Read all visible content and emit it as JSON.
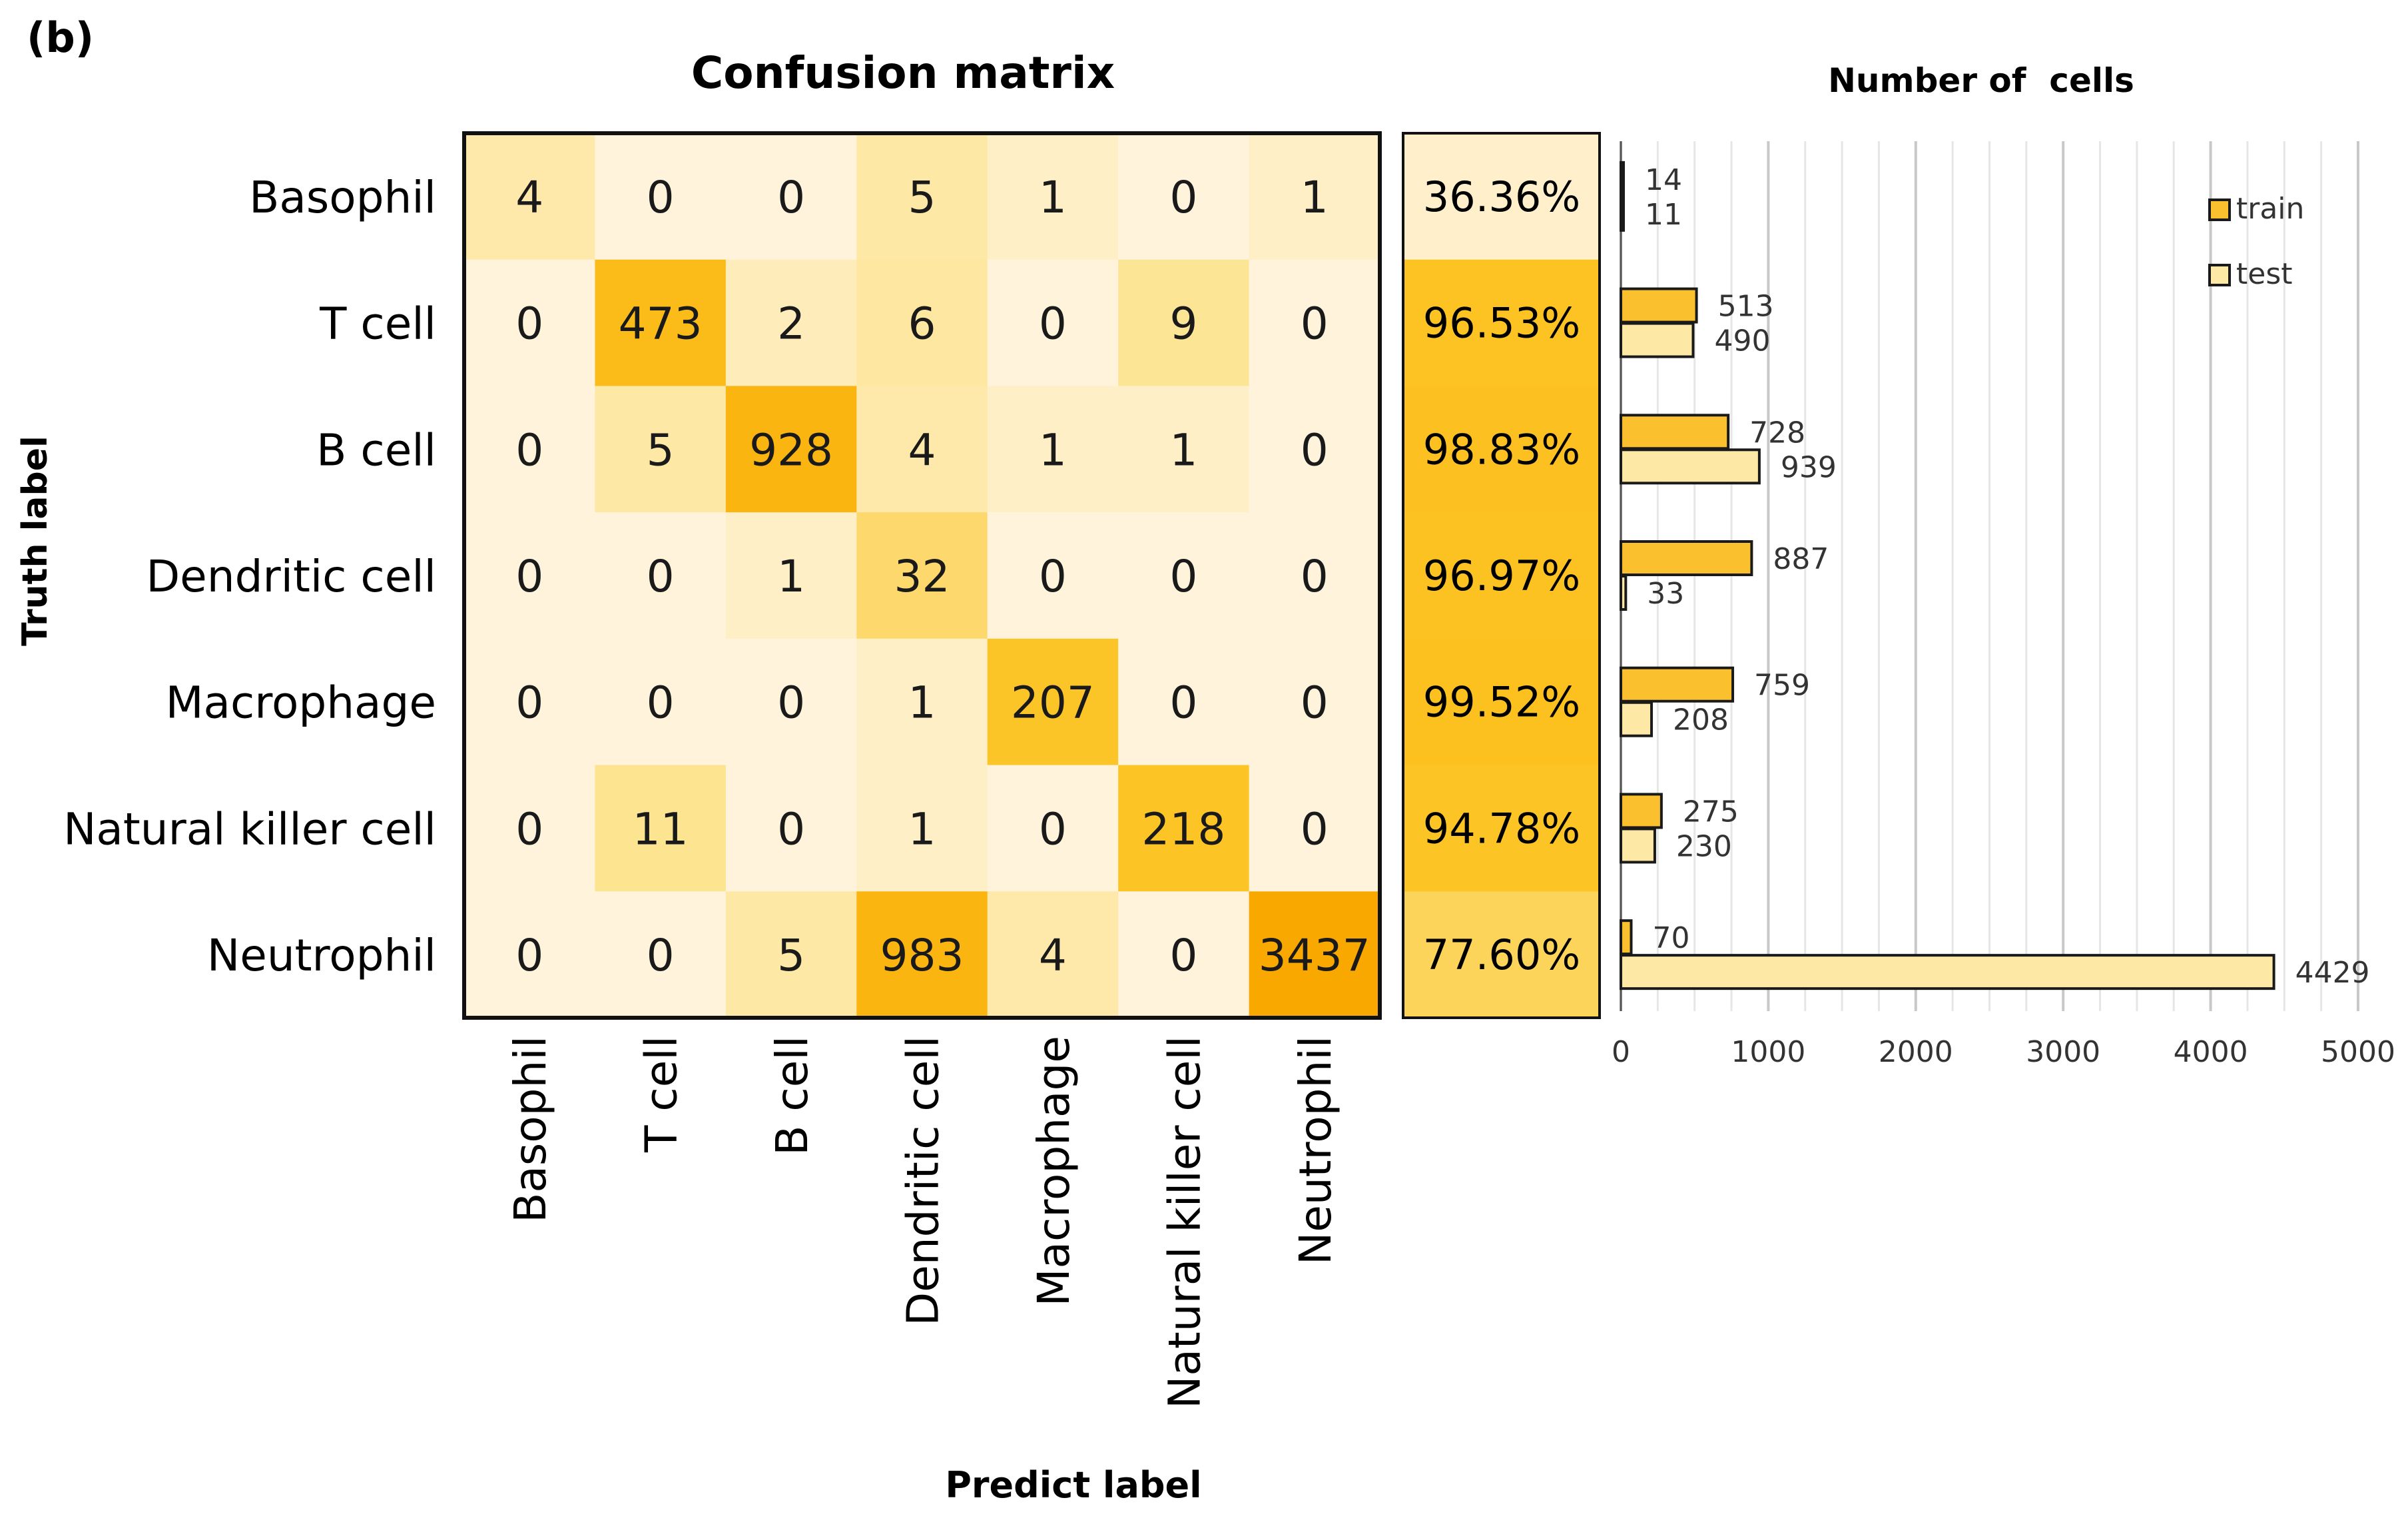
{
  "panel_label": "(b)",
  "chart_data": [
    {
      "type": "heatmap",
      "title": "Confusion matrix",
      "xlabel": "Predict label",
      "ylabel": "Truth label",
      "row_labels": [
        "Basophil",
        "T cell",
        "B cell",
        "Dendritic cell",
        "Macrophage",
        "Natural killer cell",
        "Neutrophil"
      ],
      "col_labels": [
        "Basophil",
        "T cell",
        "B cell",
        "Dendritic cell",
        "Macrophage",
        "Natural killer cell",
        "Neutrophil"
      ],
      "matrix": [
        [
          4,
          0,
          0,
          5,
          1,
          0,
          1
        ],
        [
          0,
          473,
          2,
          6,
          0,
          9,
          0
        ],
        [
          0,
          5,
          928,
          4,
          1,
          1,
          0
        ],
        [
          0,
          0,
          1,
          32,
          0,
          0,
          0
        ],
        [
          0,
          0,
          0,
          1,
          207,
          0,
          0
        ],
        [
          0,
          11,
          0,
          1,
          0,
          218,
          0
        ],
        [
          0,
          0,
          5,
          983,
          4,
          0,
          3437
        ]
      ],
      "row_accuracy": [
        "36.36%",
        "96.53%",
        "98.83%",
        "96.97%",
        "99.52%",
        "94.78%",
        "77.60%"
      ],
      "row_accuracy_values": [
        36.36,
        96.53,
        98.83,
        96.97,
        99.52,
        94.78,
        77.6
      ]
    },
    {
      "type": "bar",
      "orientation": "horizontal",
      "title": "Number of  cells",
      "categories": [
        "Basophil",
        "T cell",
        "B cell",
        "Dendritic cell",
        "Macrophage",
        "Natural killer cell",
        "Neutrophil"
      ],
      "series": [
        {
          "name": "train",
          "values": [
            14,
            513,
            728,
            887,
            759,
            275,
            70
          ],
          "color": "#fbc02d"
        },
        {
          "name": "test",
          "values": [
            11,
            490,
            939,
            33,
            208,
            230,
            4429
          ],
          "color": "#fde8a6"
        }
      ],
      "xlim": [
        0,
        5000
      ],
      "x_ticks": [
        0,
        1000,
        2000,
        3000,
        4000,
        5000
      ],
      "grid": "vertical",
      "legend": "top-right"
    }
  ]
}
